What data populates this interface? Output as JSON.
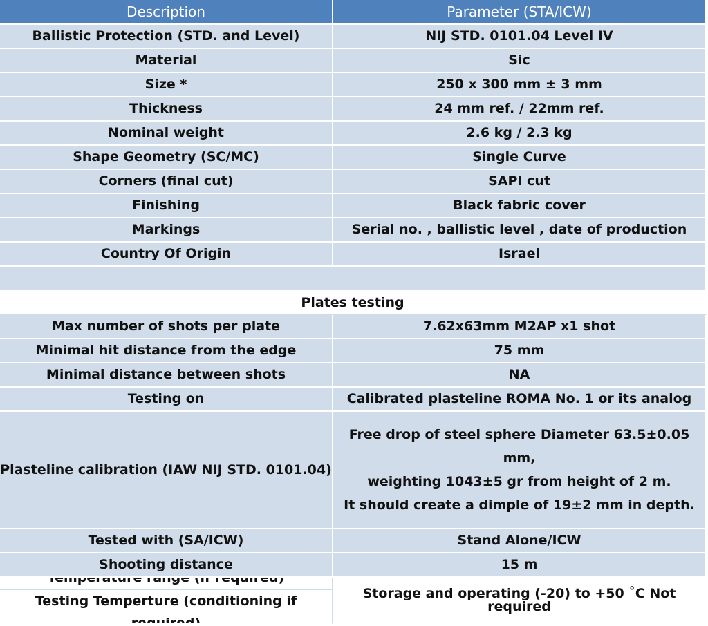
{
  "header": {
    "col1": "Description",
    "col2": "Parameter (STA/ICW)"
  },
  "rows": [
    {
      "label": "Ballistic Protection (STD. and Level)",
      "value": "NIJ STD. 0101.04 Level IV"
    },
    {
      "label": "Material",
      "value": "Sic"
    },
    {
      "label": "Size *",
      "value": "250 x 300 mm ± 3 mm"
    },
    {
      "label": "Thickness",
      "value": "24 mm ref. / 22mm ref."
    },
    {
      "label": "Nominal weight",
      "value": "2.6 kg / 2.3 kg"
    },
    {
      "label": "Shape Geometry (SC/MC)",
      "value": "Single Curve"
    },
    {
      "label": "Corners (final cut)",
      "value": "SAPI cut"
    },
    {
      "label": "Finishing",
      "value": "Black fabric cover"
    },
    {
      "label": "Markings",
      "value": "Serial no. , ballistic level , date of production"
    },
    {
      "label": "Country Of Origin",
      "value": "Israel"
    }
  ],
  "section_title": "Plates testing",
  "testing_rows": [
    {
      "label": "Max number of shots per plate",
      "value": "7.62x63mm M2AP x1 shot"
    },
    {
      "label": "Minimal hit distance from the edge",
      "value": "75 mm"
    },
    {
      "label": "Minimal distance between shots",
      "value": "NA"
    },
    {
      "label": "Testing on",
      "value": "Calibrated plasteline ROMA No. 1 or its analog"
    }
  ],
  "calibration": {
    "label": "Plasteline calibration (IAW NIJ STD. 0101.04)",
    "lines": [
      "Free drop of steel sphere Diameter 63.5±0.05",
      "mm,",
      "weighting 1043±5 gr from height of 2 m.",
      "It should create a dimple of 19±2 mm in depth."
    ]
  },
  "final_rows": [
    {
      "label": "Tested with (SA/ICW)",
      "value": "Stand Alone/ICW"
    },
    {
      "label": "Shooting distance",
      "value": "15 m"
    }
  ],
  "temperature": {
    "label1": "Temperature range (if required)",
    "label2": "Testing Temperture (conditioning if required)",
    "value": "Storage and operating (-20) to +50 ˚C Not required"
  }
}
